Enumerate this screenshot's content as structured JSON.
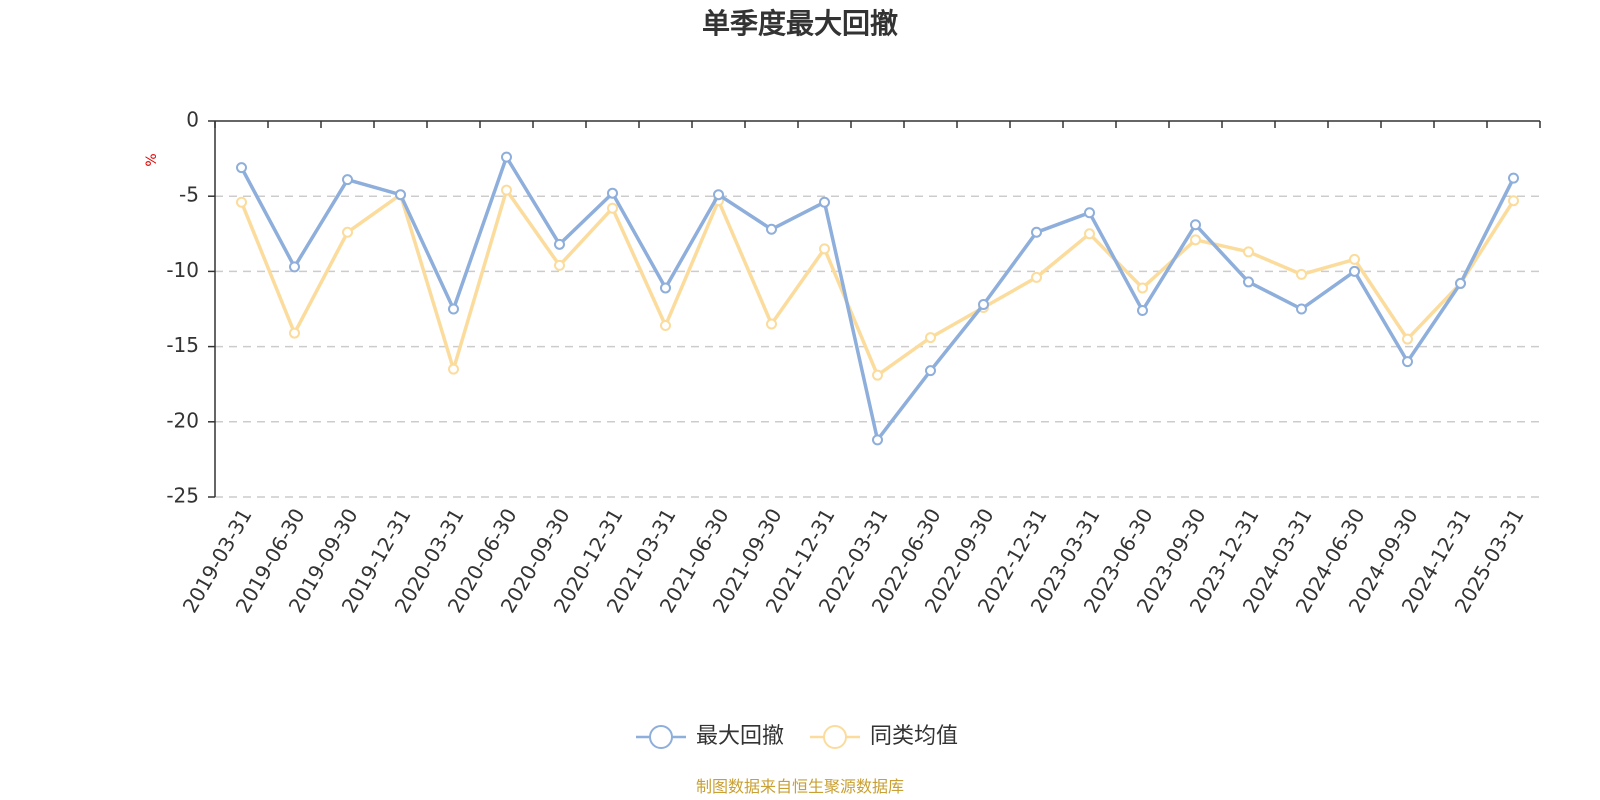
{
  "chart_data": {
    "type": "line",
    "title": "单季度最大回撤",
    "ylabel": "%",
    "ylim": [
      -25,
      0
    ],
    "yticks": [
      0,
      -5,
      -10,
      -15,
      -20,
      -25
    ],
    "grid": true,
    "legend_position": "bottom",
    "categories": [
      "2019-03-31",
      "2019-06-30",
      "2019-09-30",
      "2019-12-31",
      "2020-03-31",
      "2020-06-30",
      "2020-09-30",
      "2020-12-31",
      "2021-03-31",
      "2021-06-30",
      "2021-09-30",
      "2021-12-31",
      "2022-03-31",
      "2022-06-30",
      "2022-09-30",
      "2022-12-31",
      "2023-03-31",
      "2023-06-30",
      "2023-09-30",
      "2023-12-31",
      "2024-03-31",
      "2024-06-30",
      "2024-09-30",
      "2024-12-31",
      "2025-03-31"
    ],
    "series": [
      {
        "name": "最大回撤",
        "color": "#8eaedb",
        "values": [
          -3.1,
          -9.7,
          -3.9,
          -4.9,
          -12.5,
          -2.4,
          -8.2,
          -4.8,
          -11.1,
          -4.9,
          -7.2,
          -5.4,
          -21.2,
          -16.6,
          -12.2,
          -7.4,
          -6.1,
          -12.6,
          -6.9,
          -10.7,
          -12.5,
          -10.0,
          -16.0,
          -10.8,
          -3.8
        ]
      },
      {
        "name": "同类均值",
        "color": "#fbdc9c",
        "values": [
          -5.4,
          -14.1,
          -7.4,
          -4.9,
          -16.5,
          -4.6,
          -9.6,
          -5.8,
          -13.6,
          -5.3,
          -13.5,
          -8.5,
          -16.9,
          -14.4,
          -12.4,
          -10.4,
          -7.5,
          -11.1,
          -7.9,
          -8.7,
          -10.2,
          -9.2,
          -14.5,
          -10.8,
          -5.3
        ]
      }
    ],
    "source": "制图数据来自恒生聚源数据库"
  }
}
